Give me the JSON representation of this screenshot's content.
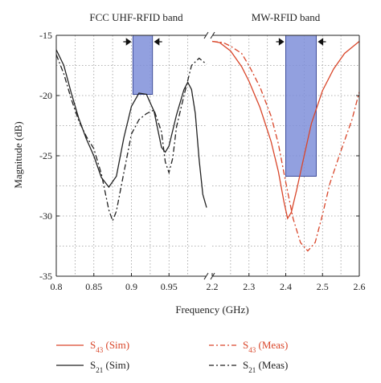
{
  "chart_data": {
    "type": "line",
    "xlabel": "Frequency (GHz)",
    "ylabel": "Magnitude (dB)",
    "ylim": [
      -35,
      -15
    ],
    "yticks": [
      -15,
      -20,
      -25,
      -30,
      -35
    ],
    "grid": true,
    "broken_x_axis": true,
    "panels": [
      {
        "annotation": "FCC UHF-RFID band",
        "xlim": [
          0.8,
          1.0
        ],
        "xticks": [
          0.8,
          0.85,
          0.9,
          0.95
        ],
        "band": {
          "x0": 0.902,
          "x1": 0.928,
          "top_db": -15,
          "bottom_db": -19.9
        }
      },
      {
        "annotation": "MW-RFID band",
        "xlim": [
          2.2,
          2.6
        ],
        "xticks": [
          2.2,
          2.3,
          2.4,
          2.5,
          2.6
        ],
        "band": {
          "x0": 2.4,
          "x1": 2.483,
          "top_db": -15,
          "bottom_db": -26.7
        }
      }
    ],
    "series": [
      {
        "name": "S43 (Sim)",
        "base": "S",
        "sub": "43",
        "suffix": " (Sim)",
        "color": "#d9462a",
        "dash": "solid",
        "panel": 1,
        "points": [
          [
            2.2,
            -15.5
          ],
          [
            2.22,
            -15.6
          ],
          [
            2.25,
            -16.3
          ],
          [
            2.28,
            -17.6
          ],
          [
            2.3,
            -18.8
          ],
          [
            2.33,
            -21
          ],
          [
            2.36,
            -23.8
          ],
          [
            2.38,
            -26.3
          ],
          [
            2.395,
            -28.8
          ],
          [
            2.405,
            -30.2
          ],
          [
            2.415,
            -29.7
          ],
          [
            2.43,
            -27.8
          ],
          [
            2.45,
            -25
          ],
          [
            2.47,
            -22.3
          ],
          [
            2.5,
            -19.6
          ],
          [
            2.53,
            -17.8
          ],
          [
            2.56,
            -16.5
          ],
          [
            2.6,
            -15.5
          ]
        ]
      },
      {
        "name": "S43 (Meas)",
        "base": "S",
        "sub": "43",
        "suffix": " (Meas)",
        "color": "#d9462a",
        "dash": "dashdot",
        "panel": 1,
        "points": [
          [
            2.2,
            -15.5
          ],
          [
            2.23,
            -15.6
          ],
          [
            2.25,
            -15.9
          ],
          [
            2.28,
            -16.5
          ],
          [
            2.3,
            -17.5
          ],
          [
            2.33,
            -19.3
          ],
          [
            2.36,
            -21.7
          ],
          [
            2.38,
            -24
          ],
          [
            2.4,
            -27.2
          ],
          [
            2.42,
            -30.2
          ],
          [
            2.44,
            -32.2
          ],
          [
            2.46,
            -32.9
          ],
          [
            2.48,
            -32.2
          ],
          [
            2.5,
            -29.9
          ],
          [
            2.52,
            -27.3
          ],
          [
            2.55,
            -24.6
          ],
          [
            2.58,
            -22
          ],
          [
            2.6,
            -19.7
          ]
        ]
      },
      {
        "name": "S21 (Sim)",
        "base": "S",
        "sub": "21",
        "suffix": " (Sim)",
        "color": "#222222",
        "dash": "solid",
        "panel": 0,
        "points": [
          [
            0.8,
            -16.2
          ],
          [
            0.81,
            -17.5
          ],
          [
            0.82,
            -19.8
          ],
          [
            0.83,
            -21.9
          ],
          [
            0.84,
            -23.6
          ],
          [
            0.85,
            -25
          ],
          [
            0.86,
            -26.8
          ],
          [
            0.87,
            -27.6
          ],
          [
            0.88,
            -26.7
          ],
          [
            0.89,
            -23.5
          ],
          [
            0.9,
            -20.9
          ],
          [
            0.91,
            -19.8
          ],
          [
            0.92,
            -19.9
          ],
          [
            0.93,
            -21.3
          ],
          [
            0.94,
            -24.3
          ],
          [
            0.945,
            -24.7
          ],
          [
            0.95,
            -24.2
          ],
          [
            0.96,
            -21.6
          ],
          [
            0.97,
            -19.5
          ],
          [
            0.975,
            -18.9
          ],
          [
            0.98,
            -19.5
          ],
          [
            0.985,
            -21.5
          ],
          [
            0.99,
            -25.3
          ],
          [
            0.995,
            -28.2
          ],
          [
            1.0,
            -29.3
          ]
        ]
      },
      {
        "name": "S21 (Meas)",
        "base": "S",
        "sub": "21",
        "suffix": " (Meas)",
        "color": "#222222",
        "dash": "dashdot",
        "panel": 0,
        "points": [
          [
            0.8,
            -16.6
          ],
          [
            0.81,
            -18.2
          ],
          [
            0.82,
            -20.3
          ],
          [
            0.83,
            -22.1
          ],
          [
            0.84,
            -23.4
          ],
          [
            0.85,
            -24.4
          ],
          [
            0.86,
            -26.5
          ],
          [
            0.87,
            -29.5
          ],
          [
            0.875,
            -30.4
          ],
          [
            0.88,
            -29.6
          ],
          [
            0.89,
            -26.4
          ],
          [
            0.9,
            -23.2
          ],
          [
            0.91,
            -22
          ],
          [
            0.92,
            -21.5
          ],
          [
            0.93,
            -21.2
          ],
          [
            0.94,
            -23
          ],
          [
            0.945,
            -25.5
          ],
          [
            0.95,
            -26.4
          ],
          [
            0.955,
            -25.2
          ],
          [
            0.96,
            -22.6
          ],
          [
            0.97,
            -20
          ],
          [
            0.98,
            -17.5
          ],
          [
            0.99,
            -16.9
          ],
          [
            1.0,
            -17.4
          ]
        ]
      }
    ]
  }
}
